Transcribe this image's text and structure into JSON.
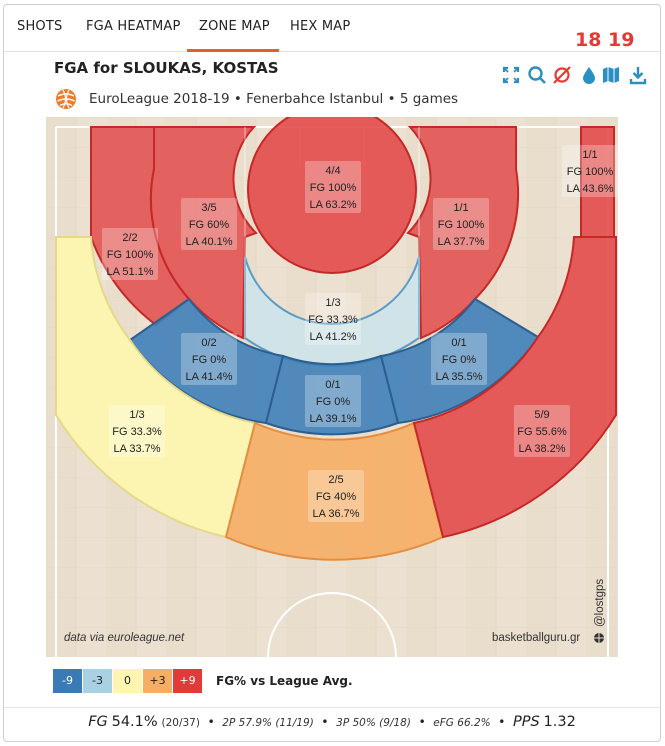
{
  "tabs": [
    {
      "label": "SHOTS",
      "active": false
    },
    {
      "label": "FGA HEATMAP",
      "active": false
    },
    {
      "label": "ZONE MAP",
      "active": true
    },
    {
      "label": "HEX MAP",
      "active": false
    }
  ],
  "version_badge": "18 19",
  "header": {
    "title": "FGA for SLOUKAS, KOSTAS",
    "subtitle": "EuroLeague 2018-19 • Fenerbahce Istanbul • 5 games"
  },
  "toolbar": {
    "icons": [
      "expand-icon",
      "search-icon",
      "no-location-icon",
      "drop-icon",
      "map-icon",
      "download-icon"
    ],
    "color": "#2b8fc4",
    "no_location_color": "#e53935"
  },
  "zones": {
    "restricted": {
      "made": "4/4",
      "fg": "FG 100%",
      "la": "LA 63.2%"
    },
    "left_mid_top": {
      "made": "3/5",
      "fg": "FG 60%",
      "la": "LA 40.1%"
    },
    "right_mid_top": {
      "made": "1/1",
      "fg": "FG 100%",
      "la": "LA 37.7%"
    },
    "left_corner_mid": {
      "made": "2/2",
      "fg": "FG 100%",
      "la": "LA 51.1%"
    },
    "right_corner_three": {
      "made": "1/1",
      "fg": "FG 100%",
      "la": "LA 43.6%"
    },
    "paint_nonra": {
      "made": "1/3",
      "fg": "FG 33.3%",
      "la": "LA 41.2%"
    },
    "left_wing_mid": {
      "made": "0/2",
      "fg": "FG 0%",
      "la": "LA 41.4%"
    },
    "right_wing_mid": {
      "made": "0/1",
      "fg": "FG 0%",
      "la": "LA 35.5%"
    },
    "top_mid": {
      "made": "0/1",
      "fg": "FG 0%",
      "la": "LA 39.1%"
    },
    "left_three": {
      "made": "1/3",
      "fg": "FG 33.3%",
      "la": "LA 33.7%"
    },
    "top_three": {
      "made": "2/5",
      "fg": "FG 40%",
      "la": "LA 36.7%"
    },
    "right_three": {
      "made": "5/9",
      "fg": "FG 55.6%",
      "la": "LA 38.2%"
    }
  },
  "credits": {
    "left": "data via euroleague.net",
    "right": "basketballguru.gr",
    "handle": "@lostgps"
  },
  "legend": {
    "items": [
      {
        "label": "-9",
        "color": "#3a7ab5",
        "text_color": "#ffffff"
      },
      {
        "label": "-3",
        "color": "#a8d2e4",
        "text_color": "#222222"
      },
      {
        "label": "0",
        "color": "#fdf5b0",
        "text_color": "#222222"
      },
      {
        "label": "+3",
        "color": "#f6ae65",
        "text_color": "#222222"
      },
      {
        "label": "+9",
        "color": "#e03a3a",
        "text_color": "#ffffff"
      }
    ],
    "label": "FG% vs League Avg."
  },
  "stats": {
    "fg_label": "FG",
    "fg_value": "54.1%",
    "fg_detail": "(20/37)",
    "p2": "2P 57.9% (11/19)",
    "p3": "3P 50% (9/18)",
    "efg": "eFG 66.2%",
    "pps_label": "PPS",
    "pps_value": "1.32"
  }
}
